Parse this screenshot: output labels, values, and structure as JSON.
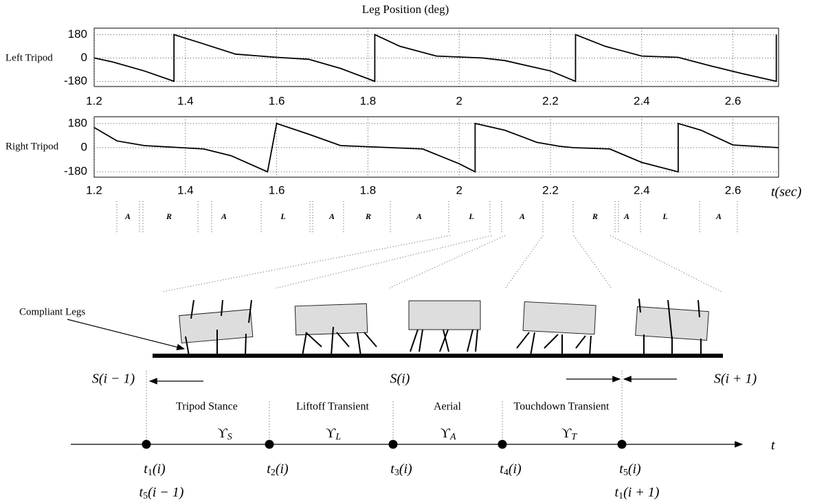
{
  "chart_data": [
    {
      "type": "line",
      "title": "Leg Position (deg)",
      "ylabel": "Left Tripod",
      "x": [
        1.2,
        1.24,
        1.31,
        1.375,
        1.375,
        1.43,
        1.51,
        1.6,
        1.67,
        1.74,
        1.815,
        1.815,
        1.87,
        1.95,
        2.05,
        2.1,
        2.2,
        2.255,
        2.255,
        2.32,
        2.4,
        2.48,
        2.55,
        2.62,
        2.695,
        2.695
      ],
      "values": [
        0,
        -30,
        -100,
        -180,
        180,
        120,
        30,
        5,
        -10,
        -80,
        -180,
        180,
        90,
        15,
        0,
        -20,
        -100,
        -180,
        180,
        90,
        15,
        5,
        -60,
        -120,
        -180,
        180
      ],
      "color": "#000000",
      "xlim": [
        1.2,
        2.7
      ],
      "ylim": [
        -220,
        230
      ],
      "xticks": [
        1.2,
        1.4,
        1.6,
        1.8,
        2,
        2.2,
        2.4,
        2.6
      ],
      "yticks": [
        -180,
        0,
        180
      ],
      "grid": true
    },
    {
      "type": "line",
      "ylabel": "Right Tripod",
      "xlabel": "t(sec)",
      "x": [
        1.2,
        1.25,
        1.31,
        1.44,
        1.5,
        1.58,
        1.6,
        1.67,
        1.74,
        1.85,
        1.92,
        2.0,
        2.035,
        2.035,
        2.1,
        2.17,
        2.22,
        2.25,
        2.33,
        2.4,
        2.48,
        2.48,
        2.53,
        2.6,
        2.7
      ],
      "values": [
        150,
        50,
        15,
        -10,
        -60,
        -180,
        180,
        100,
        15,
        0,
        -10,
        -120,
        -180,
        180,
        130,
        40,
        10,
        0,
        -10,
        -110,
        -180,
        180,
        130,
        20,
        0
      ],
      "color": "#000000",
      "xlim": [
        1.2,
        2.7
      ],
      "ylim": [
        -220,
        230
      ],
      "xticks": [
        1.2,
        1.4,
        1.6,
        1.8,
        2,
        2.2,
        2.4,
        2.6
      ],
      "yticks": [
        -180,
        0,
        180
      ],
      "grid": true
    }
  ],
  "phases": [
    "A",
    "R",
    "A",
    "L",
    "A",
    "R",
    "A",
    "L",
    "A",
    "R",
    "A",
    "L",
    "A"
  ],
  "diagram": {
    "annotation": "Compliant Legs",
    "states": [
      "S(i − 1)",
      "S(i)",
      "S(i + 1)"
    ],
    "stages": [
      {
        "name": "Tripod Stance",
        "symbol": "ϒ",
        "sub": "S"
      },
      {
        "name": "Liftoff Transient",
        "symbol": "ϒ",
        "sub": "L"
      },
      {
        "name": "Aerial",
        "symbol": "ϒ",
        "sub": "A"
      },
      {
        "name": "Touchdown Transient",
        "symbol": "ϒ",
        "sub": "T"
      }
    ],
    "axis_label": "t",
    "instants": [
      {
        "base": "t",
        "sub": "1",
        "arg": "(i)",
        "alt": {
          "base": "t",
          "sub": "5",
          "arg": "(i − 1)"
        }
      },
      {
        "base": "t",
        "sub": "2",
        "arg": "(i)"
      },
      {
        "base": "t",
        "sub": "3",
        "arg": "(i)"
      },
      {
        "base": "t",
        "sub": "4",
        "arg": "(i)"
      },
      {
        "base": "t",
        "sub": "5",
        "arg": "(i)",
        "alt": {
          "base": "t",
          "sub": "1",
          "arg": "(i + 1)"
        }
      }
    ]
  }
}
